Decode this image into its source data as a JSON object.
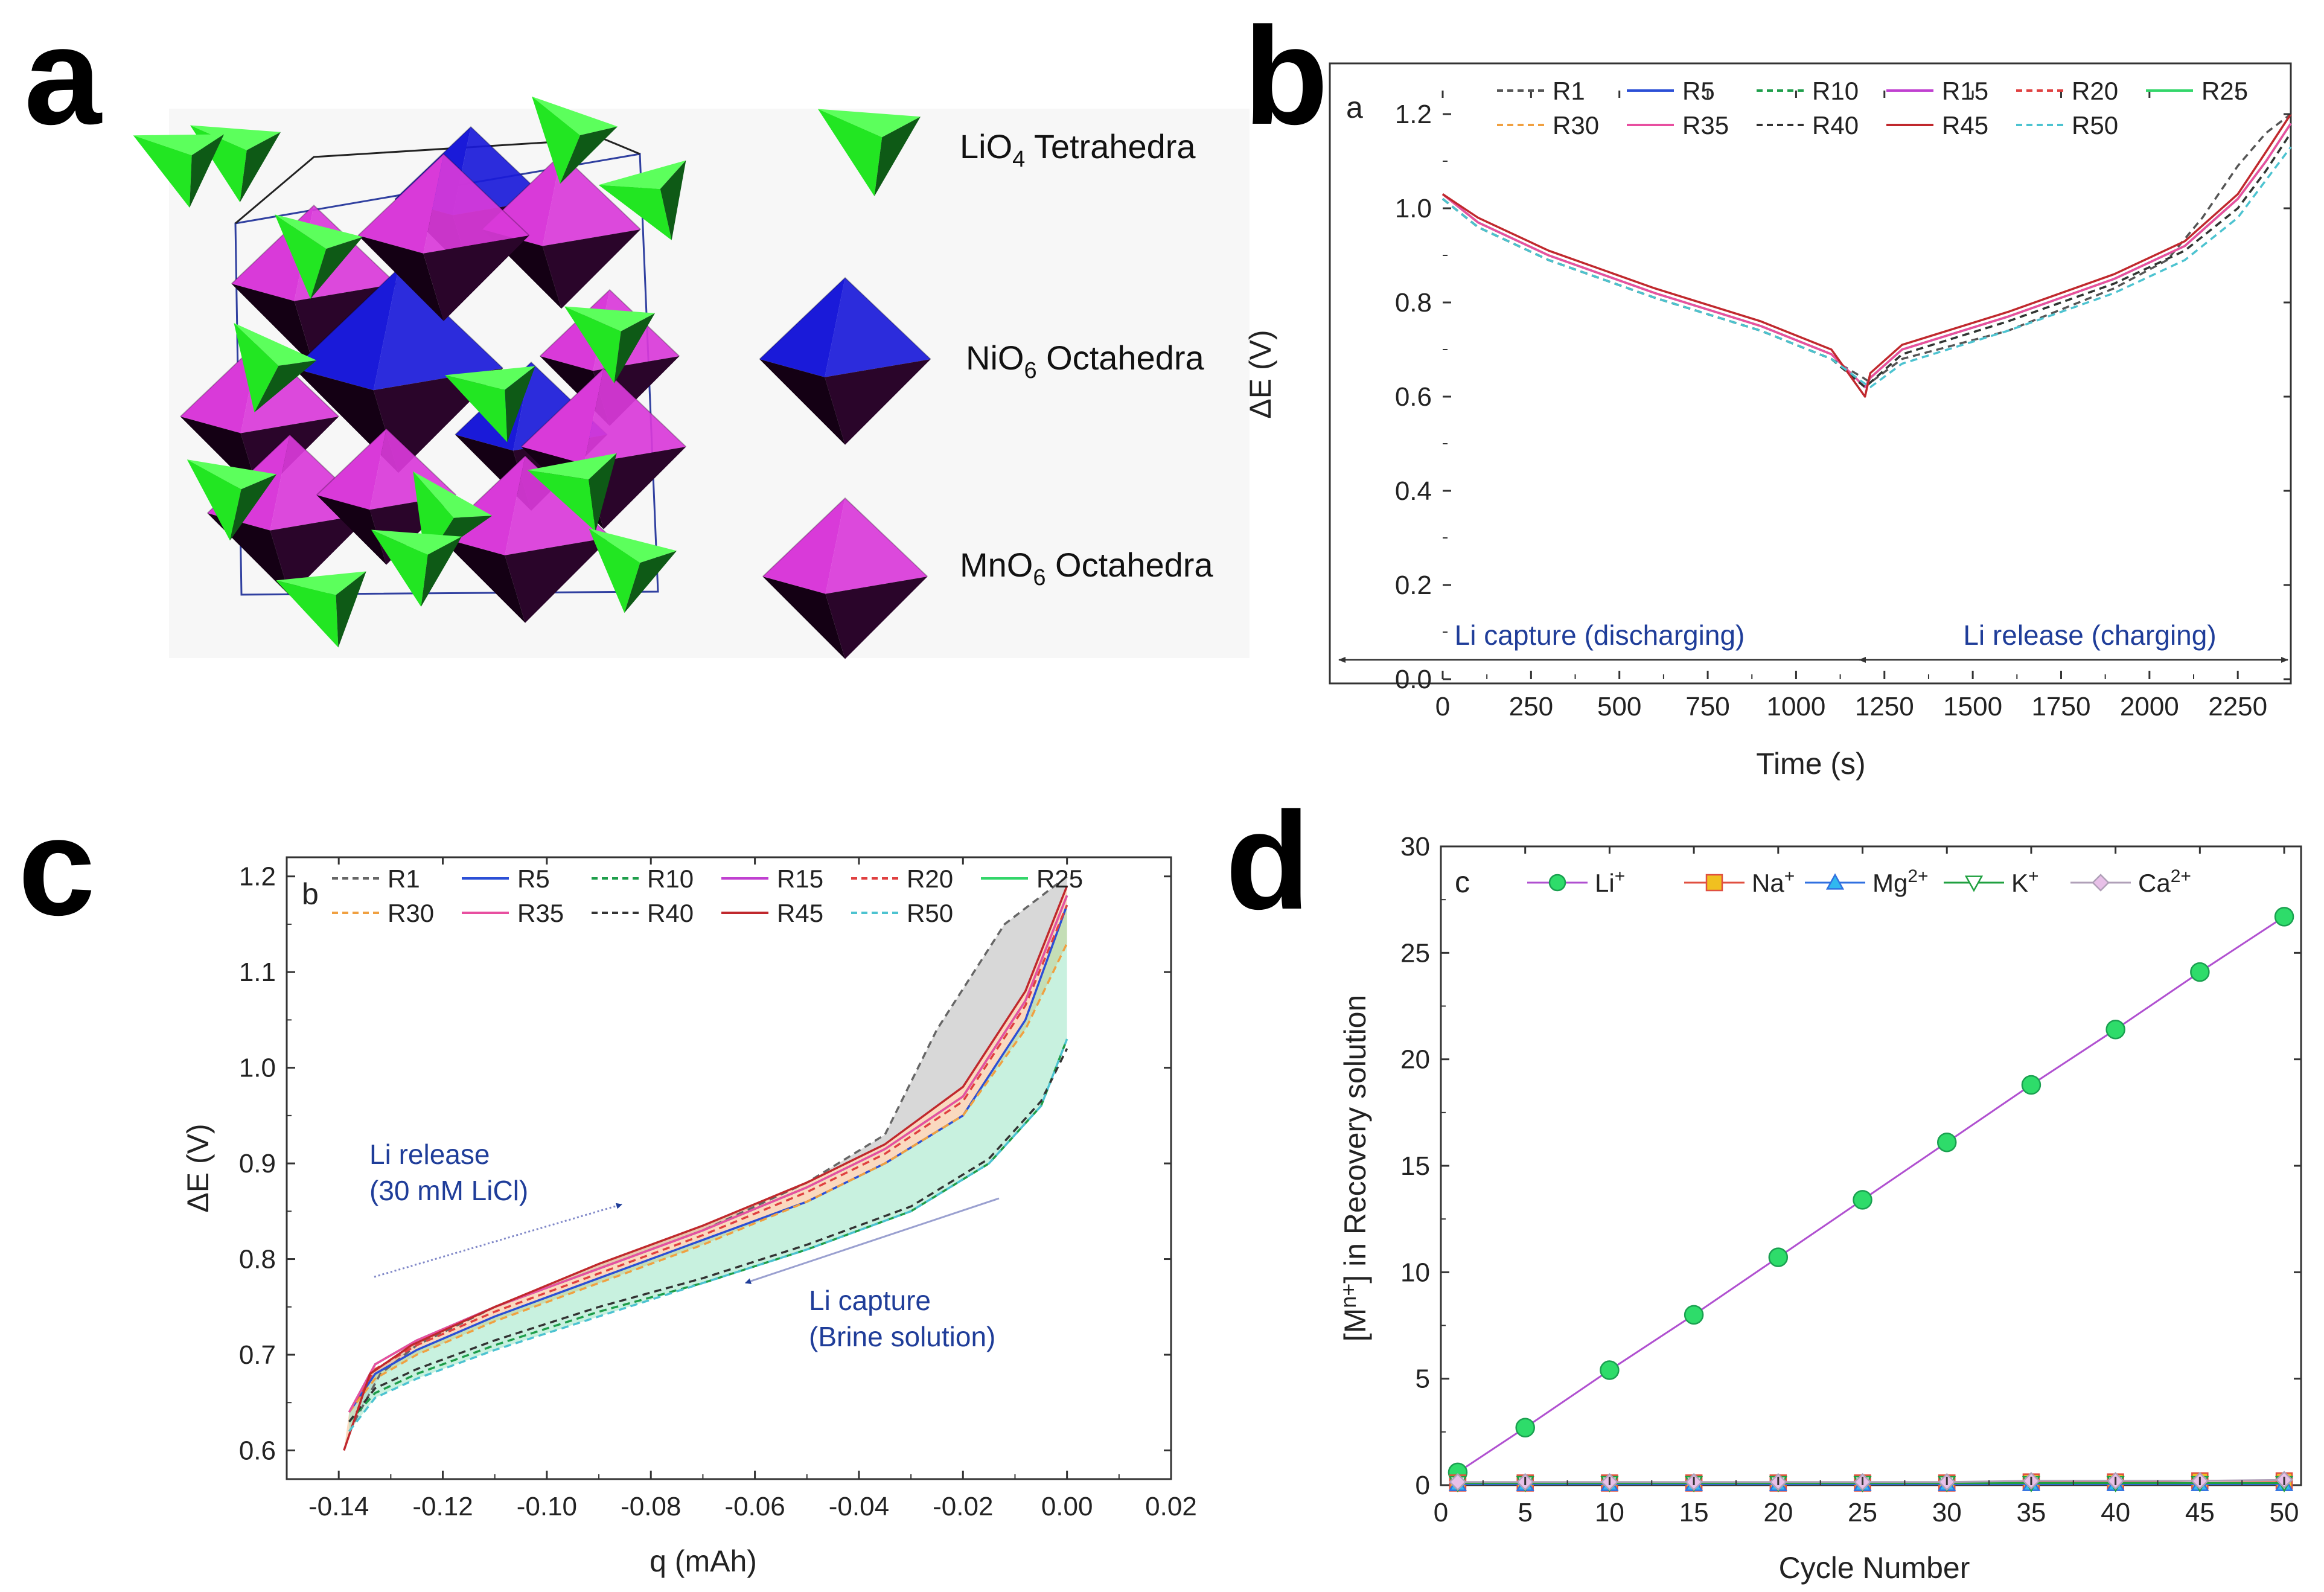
{
  "panel_letters": [
    "a",
    "b",
    "c",
    "d"
  ],
  "panel_a": {
    "key": [
      {
        "formula": "LiO",
        "sub": "4",
        "rest": " Tetrahedra",
        "color": "#22e622"
      },
      {
        "formula": "NiO",
        "sub": "6",
        "rest": " Octahedra",
        "color": "#1a1ad9"
      },
      {
        "formula": "MnO",
        "sub": "6",
        "rest": " Octahedra",
        "color": "#e033e0"
      }
    ]
  },
  "panel_b_ann": {
    "capture": "Li capture (discharging)",
    "release": "Li release (charging)"
  },
  "panel_c_ann": {
    "release_1": "Li release",
    "release_2": "(30 mM LiCl)",
    "capture_1": "Li capture",
    "capture_2": "(Brine solution)"
  },
  "chart_data": [
    {
      "type": "line",
      "panel": "b",
      "inner_label": "a",
      "xlabel": "Time (s)",
      "ylabel": "ΔE (V)",
      "xlim": [
        0,
        2400
      ],
      "ylim": [
        0,
        1.25
      ],
      "xticks": [
        "0",
        "250",
        "500",
        "750",
        "1000",
        "1250",
        "1500",
        "1750",
        "2000",
        "2250"
      ],
      "yticks": [
        "0.0",
        "0.2",
        "0.4",
        "0.6",
        "0.8",
        "1.0",
        "1.2"
      ],
      "legend": [
        "R1",
        "R5",
        "R10",
        "R15",
        "R20",
        "R25",
        "R30",
        "R35",
        "R40",
        "R45",
        "R50"
      ],
      "legend_position": "top",
      "series": [
        {
          "name": "R1",
          "color": "#555555",
          "dash": "dashed",
          "x": [
            0,
            100,
            300,
            600,
            900,
            1100,
            1190,
            1210,
            1300,
            1600,
            1900,
            2050,
            2150,
            2250,
            2330,
            2400
          ],
          "y": [
            1.02,
            0.96,
            0.89,
            0.81,
            0.74,
            0.68,
            0.64,
            0.63,
            0.68,
            0.74,
            0.83,
            0.89,
            0.98,
            1.09,
            1.16,
            1.2
          ]
        },
        {
          "name": "R5",
          "color": "#2b4fd6",
          "dash": "solid",
          "x": [
            0,
            100,
            300,
            600,
            900,
            1100,
            1195,
            1210,
            1300,
            1600,
            1900,
            2100,
            2250,
            2330,
            2400
          ],
          "y": [
            1.03,
            0.97,
            0.9,
            0.82,
            0.75,
            0.69,
            0.62,
            0.64,
            0.7,
            0.77,
            0.85,
            0.92,
            1.02,
            1.1,
            1.18
          ]
        },
        {
          "name": "R10",
          "color": "#1e9e4a",
          "dash": "dashed",
          "x": [
            0,
            100,
            300,
            600,
            900,
            1100,
            1195,
            1210,
            1300,
            1600,
            1900,
            2100,
            2250,
            2330,
            2400
          ],
          "y": [
            1.02,
            0.96,
            0.89,
            0.81,
            0.74,
            0.68,
            0.62,
            0.63,
            0.69,
            0.76,
            0.84,
            0.91,
            1.0,
            1.08,
            1.16
          ]
        },
        {
          "name": "R15",
          "color": "#c040d0",
          "dash": "solid",
          "x": [
            0,
            100,
            300,
            600,
            900,
            1100,
            1195,
            1210,
            1300,
            1600,
            1900,
            2100,
            2250,
            2330,
            2400
          ],
          "y": [
            1.03,
            0.97,
            0.9,
            0.82,
            0.75,
            0.69,
            0.62,
            0.64,
            0.7,
            0.77,
            0.85,
            0.92,
            1.02,
            1.1,
            1.18
          ]
        },
        {
          "name": "R20",
          "color": "#e04040",
          "dash": "dashed",
          "x": [
            0,
            100,
            300,
            600,
            900,
            1100,
            1195,
            1210,
            1300,
            1600,
            1900,
            2100,
            2250,
            2330,
            2400
          ],
          "y": [
            1.03,
            0.97,
            0.9,
            0.82,
            0.75,
            0.69,
            0.62,
            0.64,
            0.7,
            0.77,
            0.85,
            0.92,
            1.02,
            1.1,
            1.18
          ]
        },
        {
          "name": "R25",
          "color": "#33d66a",
          "dash": "solid",
          "x": [
            0,
            100,
            300,
            600,
            900,
            1100,
            1195,
            1210,
            1300,
            1600,
            1900,
            2100,
            2250,
            2330,
            2400
          ],
          "y": [
            1.03,
            0.97,
            0.9,
            0.82,
            0.75,
            0.69,
            0.62,
            0.64,
            0.7,
            0.77,
            0.85,
            0.92,
            1.02,
            1.1,
            1.18
          ]
        },
        {
          "name": "R30",
          "color": "#f0a040",
          "dash": "dashed",
          "x": [
            0,
            100,
            300,
            600,
            900,
            1100,
            1195,
            1210,
            1300,
            1600,
            1900,
            2100,
            2250,
            2330,
            2400
          ],
          "y": [
            1.03,
            0.97,
            0.9,
            0.82,
            0.75,
            0.69,
            0.62,
            0.64,
            0.7,
            0.77,
            0.85,
            0.92,
            1.02,
            1.1,
            1.18
          ]
        },
        {
          "name": "R35",
          "color": "#e84fa0",
          "dash": "solid",
          "x": [
            0,
            100,
            300,
            600,
            900,
            1100,
            1195,
            1210,
            1300,
            1600,
            1900,
            2100,
            2250,
            2330,
            2400
          ],
          "y": [
            1.03,
            0.97,
            0.9,
            0.82,
            0.75,
            0.69,
            0.62,
            0.64,
            0.7,
            0.77,
            0.85,
            0.92,
            1.02,
            1.1,
            1.18
          ]
        },
        {
          "name": "R40",
          "color": "#333333",
          "dash": "dashed",
          "x": [
            0,
            100,
            300,
            600,
            900,
            1100,
            1195,
            1210,
            1300,
            1600,
            1900,
            2100,
            2250,
            2330,
            2400
          ],
          "y": [
            1.02,
            0.96,
            0.89,
            0.81,
            0.74,
            0.68,
            0.62,
            0.63,
            0.69,
            0.76,
            0.84,
            0.91,
            1.0,
            1.08,
            1.16
          ]
        },
        {
          "name": "R45",
          "color": "#c0282d",
          "dash": "solid",
          "x": [
            0,
            100,
            300,
            600,
            900,
            1100,
            1195,
            1210,
            1300,
            1600,
            1900,
            2100,
            2250,
            2330,
            2400
          ],
          "y": [
            1.03,
            0.98,
            0.91,
            0.83,
            0.76,
            0.7,
            0.6,
            0.65,
            0.71,
            0.78,
            0.86,
            0.93,
            1.03,
            1.12,
            1.2
          ]
        },
        {
          "name": "R50",
          "color": "#4cc3d0",
          "dash": "dashed",
          "x": [
            0,
            100,
            300,
            600,
            900,
            1100,
            1190,
            1210,
            1300,
            1600,
            1900,
            2100,
            2250,
            2330,
            2400
          ],
          "y": [
            1.02,
            0.96,
            0.89,
            0.81,
            0.74,
            0.68,
            0.63,
            0.62,
            0.67,
            0.74,
            0.82,
            0.89,
            0.98,
            1.06,
            1.13
          ]
        }
      ]
    },
    {
      "type": "line",
      "panel": "c",
      "inner_label": "b",
      "xlabel": "q (mAh)",
      "ylabel": "ΔE (V)",
      "xlim": [
        -0.15,
        0.02
      ],
      "ylim": [
        0.57,
        1.22
      ],
      "xticks": [
        "-0.14",
        "-0.12",
        "-0.10",
        "-0.08",
        "-0.06",
        "-0.04",
        "-0.02",
        "0.00",
        "0.02"
      ],
      "yticks": [
        "0.6",
        "0.7",
        "0.8",
        "0.9",
        "1.0",
        "1.1",
        "1.2"
      ],
      "legend": [
        "R1",
        "R5",
        "R10",
        "R15",
        "R20",
        "R25",
        "R30",
        "R35",
        "R40",
        "R45",
        "R50"
      ],
      "legend_position": "top",
      "series": [
        {
          "name": "R1",
          "color": "#666666",
          "dash": "dashed",
          "x": [
            -0.137,
            -0.132,
            -0.125,
            -0.11,
            -0.09,
            -0.07,
            -0.05,
            -0.035,
            -0.025,
            -0.012,
            0.0
          ],
          "y": [
            0.63,
            0.68,
            0.71,
            0.75,
            0.79,
            0.83,
            0.88,
            0.93,
            1.04,
            1.15,
            1.2
          ]
        },
        {
          "name": "R5",
          "color": "#2b4fd6",
          "dash": "solid",
          "x": [
            -0.138,
            -0.133,
            -0.125,
            -0.11,
            -0.09,
            -0.07,
            -0.05,
            -0.035,
            -0.02,
            -0.008,
            0.0
          ],
          "y": [
            0.64,
            0.68,
            0.705,
            0.74,
            0.78,
            0.82,
            0.86,
            0.9,
            0.95,
            1.05,
            1.17
          ]
        },
        {
          "name": "R10",
          "color": "#1e9e4a",
          "dash": "dashed",
          "x": [
            -0.138,
            -0.133,
            -0.125,
            -0.11,
            -0.09,
            -0.07,
            -0.05,
            -0.03,
            -0.015,
            -0.005,
            0.0
          ],
          "y": [
            0.63,
            0.66,
            0.68,
            0.71,
            0.745,
            0.775,
            0.81,
            0.85,
            0.9,
            0.96,
            1.03
          ]
        },
        {
          "name": "R15",
          "color": "#c040d0",
          "dash": "solid",
          "x": [
            -0.138,
            -0.133,
            -0.125,
            -0.11,
            -0.09,
            -0.07,
            -0.05,
            -0.035,
            -0.02,
            -0.008,
            0.0
          ],
          "y": [
            0.64,
            0.69,
            0.715,
            0.75,
            0.79,
            0.83,
            0.875,
            0.915,
            0.97,
            1.07,
            1.18
          ]
        },
        {
          "name": "R20",
          "color": "#e04040",
          "dash": "dashed",
          "x": [
            -0.138,
            -0.133,
            -0.125,
            -0.11,
            -0.09,
            -0.07,
            -0.05,
            -0.035,
            -0.02,
            -0.008,
            0.0
          ],
          "y": [
            0.64,
            0.685,
            0.71,
            0.745,
            0.785,
            0.825,
            0.87,
            0.91,
            0.965,
            1.065,
            1.17
          ]
        },
        {
          "name": "R25",
          "color": "#33d66a",
          "dash": "solid",
          "x": [
            -0.138,
            -0.133,
            -0.125,
            -0.11,
            -0.09,
            -0.07,
            -0.05,
            -0.035,
            -0.02,
            -0.008,
            0.0
          ],
          "y": [
            0.64,
            0.69,
            0.715,
            0.75,
            0.79,
            0.83,
            0.875,
            0.915,
            0.97,
            1.07,
            1.18
          ]
        },
        {
          "name": "R30",
          "color": "#f0a040",
          "dash": "dashed",
          "x": [
            -0.138,
            -0.133,
            -0.125,
            -0.11,
            -0.09,
            -0.07,
            -0.05,
            -0.035,
            -0.02,
            -0.008,
            0.0
          ],
          "y": [
            0.64,
            0.675,
            0.7,
            0.735,
            0.775,
            0.815,
            0.86,
            0.9,
            0.95,
            1.04,
            1.13
          ]
        },
        {
          "name": "R35",
          "color": "#e84fa0",
          "dash": "solid",
          "x": [
            -0.138,
            -0.133,
            -0.125,
            -0.11,
            -0.09,
            -0.07,
            -0.05,
            -0.035,
            -0.02,
            -0.008,
            0.0
          ],
          "y": [
            0.64,
            0.69,
            0.715,
            0.75,
            0.79,
            0.83,
            0.875,
            0.915,
            0.97,
            1.07,
            1.18
          ]
        },
        {
          "name": "R40",
          "color": "#333333",
          "dash": "dashed",
          "x": [
            -0.138,
            -0.133,
            -0.125,
            -0.11,
            -0.09,
            -0.07,
            -0.05,
            -0.03,
            -0.015,
            -0.005,
            0.0
          ],
          "y": [
            0.63,
            0.665,
            0.685,
            0.715,
            0.75,
            0.78,
            0.815,
            0.855,
            0.905,
            0.965,
            1.02
          ]
        },
        {
          "name": "R45",
          "color": "#c0282d",
          "dash": "solid",
          "x": [
            -0.139,
            -0.134,
            -0.126,
            -0.11,
            -0.09,
            -0.07,
            -0.05,
            -0.035,
            -0.02,
            -0.008,
            0.0
          ],
          "y": [
            0.6,
            0.68,
            0.71,
            0.75,
            0.795,
            0.835,
            0.88,
            0.92,
            0.98,
            1.08,
            1.19
          ]
        },
        {
          "name": "R50",
          "color": "#4cc3d0",
          "dash": "dashed",
          "x": [
            -0.138,
            -0.133,
            -0.125,
            -0.11,
            -0.09,
            -0.07,
            -0.05,
            -0.03,
            -0.015,
            -0.005,
            0.0
          ],
          "y": [
            0.62,
            0.655,
            0.675,
            0.705,
            0.74,
            0.775,
            0.81,
            0.85,
            0.9,
            0.96,
            1.03
          ]
        }
      ]
    },
    {
      "type": "line",
      "panel": "d",
      "inner_label": "c",
      "xlabel": "Cycle Number",
      "ylabel_pre": "[M",
      "ylabel_sup": "n+",
      "ylabel_post": "] in Recovery solution",
      "xlim": [
        0,
        51
      ],
      "ylim": [
        0,
        30
      ],
      "xticks": [
        "0",
        "5",
        "10",
        "15",
        "20",
        "25",
        "30",
        "35",
        "40",
        "45",
        "50"
      ],
      "yticks": [
        "0",
        "5",
        "10",
        "15",
        "20",
        "25",
        "30"
      ],
      "legend_position": "top",
      "x": [
        1,
        5,
        10,
        15,
        20,
        25,
        30,
        35,
        40,
        45,
        50
      ],
      "series": [
        {
          "name": "Li",
          "sup": "+",
          "color": "#b050d0",
          "marker": "circle",
          "marker_color": "#2edc6a",
          "values": [
            0.6,
            2.7,
            5.4,
            8.0,
            10.7,
            13.4,
            16.1,
            18.8,
            21.4,
            24.1,
            26.7
          ]
        },
        {
          "name": "Na",
          "sup": "+",
          "color": "#e05040",
          "marker": "square",
          "marker_color": "#f0c020",
          "values": [
            0.1,
            0.1,
            0.1,
            0.1,
            0.1,
            0.1,
            0.1,
            0.15,
            0.15,
            0.2,
            0.2
          ]
        },
        {
          "name": "Mg",
          "sup": "2+",
          "color": "#3070e0",
          "marker": "triangle-up",
          "marker_color": "#30b8f0",
          "values": [
            0.05,
            0.05,
            0.05,
            0.05,
            0.05,
            0.05,
            0.05,
            0.05,
            0.05,
            0.05,
            0.05
          ]
        },
        {
          "name": "K",
          "sup": "+",
          "color": "#20a040",
          "marker": "triangle-down",
          "marker_color": "#ffffff",
          "values": [
            0.1,
            0.1,
            0.1,
            0.1,
            0.1,
            0.1,
            0.1,
            0.1,
            0.1,
            0.1,
            0.1
          ]
        },
        {
          "name": "Ca",
          "sup": "2+",
          "color": "#b0a0b8",
          "marker": "diamond",
          "marker_color": "#e8c0e8",
          "values": [
            0.15,
            0.15,
            0.15,
            0.15,
            0.15,
            0.15,
            0.15,
            0.2,
            0.2,
            0.2,
            0.25
          ]
        }
      ]
    }
  ]
}
